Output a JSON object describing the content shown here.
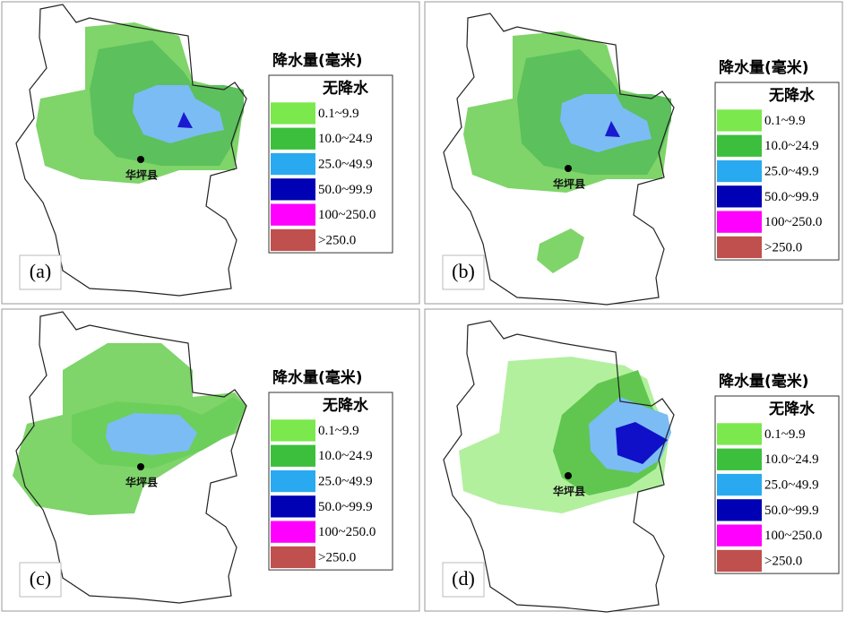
{
  "legend": {
    "title": "降水量(毫米)",
    "items": [
      {
        "label": "无降水",
        "color": "#ffffff"
      },
      {
        "label": "0.1~9.9",
        "color": "#7be84e"
      },
      {
        "label": "10.0~24.9",
        "color": "#3cbf3c"
      },
      {
        "label": "25.0~49.9",
        "color": "#29aaf0"
      },
      {
        "label": "50.0~99.9",
        "color": "#0000b4"
      },
      {
        "label": "100~250.0",
        "color": "#ff00ff"
      },
      {
        "label": ">250.0",
        "color": "#c0504d"
      }
    ]
  },
  "city": "华坪县",
  "panels": [
    {
      "label": "(a)"
    },
    {
      "label": "(b)"
    },
    {
      "label": "(c)"
    },
    {
      "label": "(d)"
    }
  ]
}
